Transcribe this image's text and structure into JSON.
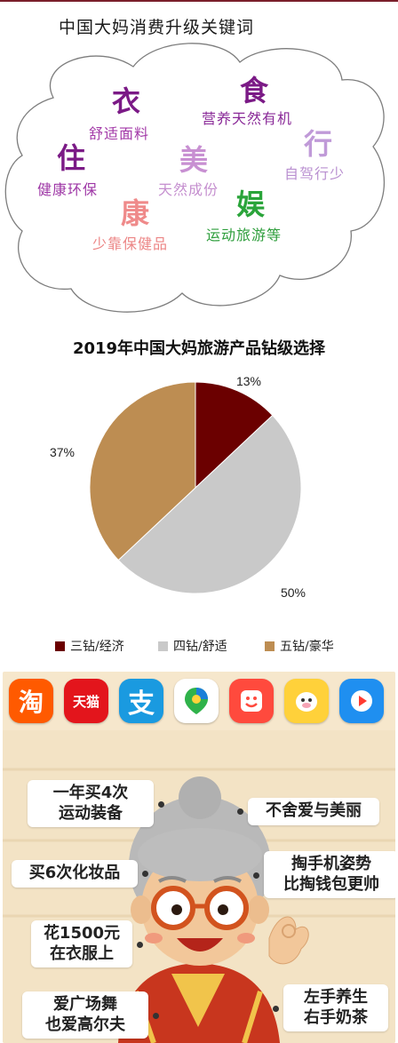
{
  "cloud": {
    "title": "中国大妈消费升级关键词",
    "keywords": [
      {
        "big": "衣",
        "small": "舒适面料",
        "color": "#7b1a86",
        "small_color": "#a33aa8"
      },
      {
        "big": "食",
        "small": "营养天然有机",
        "color": "#7b1a86",
        "small_color": "#8a2a98"
      },
      {
        "big": "住",
        "small": "健康环保",
        "color": "#7b1a86",
        "small_color": "#9e37a6"
      },
      {
        "big": "美",
        "small": "天然成份",
        "color": "#c890d2",
        "small_color": "#c58fcf"
      },
      {
        "big": "行",
        "small": "自驾行少",
        "color": "#c09ad8",
        "small_color": "#b98fd0"
      },
      {
        "big": "康",
        "small": "少靠保健品",
        "color": "#ef8a8a",
        "small_color": "#ec8585"
      },
      {
        "big": "娱",
        "small": "运动旅游等",
        "color": "#2aa43a",
        "small_color": "#2e9e3c"
      }
    ],
    "colors": {
      "cloud_outline": "#7d7d7d"
    }
  },
  "pie": {
    "legend_items": [
      "三钻/经济",
      "四钻/舒适",
      "五钻/豪华"
    ]
  },
  "chart_data": {
    "type": "pie",
    "title": "2019年中国大妈旅游产品钻级选择",
    "categories": [
      "三钻/经济",
      "四钻/舒适",
      "五钻/豪华"
    ],
    "values": [
      13,
      50,
      37
    ],
    "labels": [
      "13%",
      "50%",
      "37%"
    ],
    "colors": [
      "#6b0000",
      "#c9c9c9",
      "#bd8d52"
    ],
    "legend": "bottom"
  },
  "infographic": {
    "apps": [
      {
        "name": "taobao-icon",
        "label": "淘",
        "color": "#ff5a00"
      },
      {
        "name": "tmall-icon",
        "label": "天猫",
        "color": "#e3151c"
      },
      {
        "name": "alipay-icon",
        "label": "支",
        "color": "#1a9ae0"
      },
      {
        "name": "map-pin-icon",
        "label": "",
        "color": "#ffffff"
      },
      {
        "name": "smile-app-icon",
        "label": "",
        "color": "#ff4a3d"
      },
      {
        "name": "fliggy-icon",
        "label": "",
        "color": "#ffd13a"
      },
      {
        "name": "video-app-icon",
        "label": "",
        "color": "#1f8ff0"
      }
    ],
    "bubbles": [
      "一年买4次\n运动装备",
      "不舍爱与美丽",
      "买6次化妆品",
      "掏手机姿势\n比掏钱包更帅",
      "花1500元\n在衣服上",
      "爱广场舞\n也爱高尔夫",
      "左手养生\n右手奶茶"
    ]
  }
}
